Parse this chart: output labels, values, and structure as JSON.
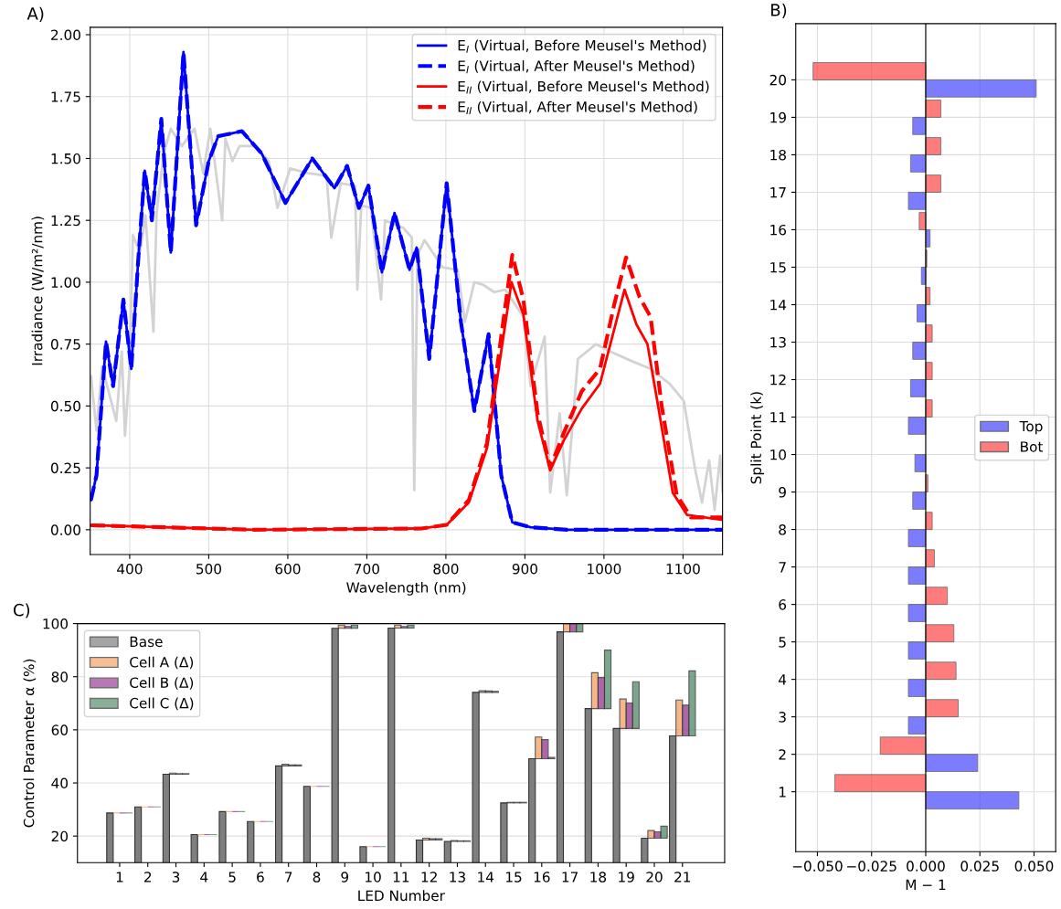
{
  "chart_data": [
    {
      "type": "line",
      "title": "A)",
      "xlabel": "Wavelength (nm)",
      "ylabel": "Irradiance (W/m²/nm)",
      "xlim": [
        350,
        1150
      ],
      "ylim": [
        -0.1,
        2.03
      ],
      "xticks": [
        400,
        500,
        600,
        700,
        800,
        900,
        1000,
        1100
      ],
      "yticks": [
        {
          "value": 0,
          "label": "0.00"
        },
        {
          "value": 0.25,
          "label": "0.25"
        },
        {
          "value": 0.5,
          "label": "0.50"
        },
        {
          "value": 0.75,
          "label": "0.75"
        },
        {
          "value": 1,
          "label": "1.00"
        },
        {
          "value": 1.25,
          "label": "1.25"
        },
        {
          "value": 1.5,
          "label": "1.50"
        },
        {
          "value": 1.75,
          "label": "1.75"
        },
        {
          "value": 2,
          "label": "2.00"
        }
      ],
      "grid": true,
      "legend": "top right",
      "series": [
        {
          "color": "#d3d3d3",
          "line_style": "solid",
          "x": [
            351,
            358,
            365,
            374,
            383,
            390,
            394,
            400,
            404,
            413,
            420,
            430,
            434,
            443,
            452,
            466,
            482,
            493,
            502,
            517,
            521,
            530,
            539,
            558,
            576,
            587,
            603,
            626,
            649,
            655,
            667,
            685,
            688,
            693,
            705,
            718,
            723,
            746,
            757,
            760,
            764,
            773,
            796,
            815,
            824,
            836,
            847,
            861,
            875,
            898,
            907,
            925,
            932,
            944,
            953,
            967,
            990,
            1008,
            1036,
            1059,
            1083,
            1101,
            1115,
            1124,
            1133,
            1140,
            1147,
            1150
          ],
          "values": [
            0.62,
            0.4,
            0.66,
            0.55,
            0.44,
            0.72,
            0.38,
            0.66,
            1.19,
            1.12,
            1.27,
            0.8,
            1.28,
            1.52,
            1.62,
            1.55,
            1.62,
            1.44,
            1.62,
            1.25,
            1.58,
            1.49,
            1.55,
            1.55,
            1.49,
            1.3,
            1.46,
            1.44,
            1.43,
            1.18,
            1.4,
            1.39,
            0.97,
            1.31,
            1.3,
            0.93,
            1.25,
            1.22,
            1.18,
            0.16,
            1.11,
            1.17,
            1.06,
            1.05,
            0.84,
            1.0,
            0.99,
            0.96,
            0.97,
            0.86,
            0.58,
            0.78,
            0.15,
            0.47,
            0.14,
            0.69,
            0.75,
            0.72,
            0.68,
            0.65,
            0.59,
            0.52,
            0.25,
            0.11,
            0.28,
            0.08,
            0.3,
            0.15
          ]
        },
        {
          "name": "E$_{I}$ (Virtual, Before Meusel's Method)",
          "color": "#0000ff",
          "line_style": "solid",
          "x": [
            351,
            358,
            370,
            379,
            392,
            402,
            411,
            419,
            428,
            440,
            452,
            468,
            484,
            500,
            512,
            542,
            567,
            597,
            631,
            659,
            675,
            690,
            702,
            719,
            735,
            754,
            763,
            779,
            801,
            819,
            836,
            854,
            870,
            884,
            907,
            953,
            1150
          ],
          "values": [
            0.12,
            0.22,
            0.76,
            0.58,
            0.93,
            0.65,
            1.1,
            1.45,
            1.25,
            1.66,
            1.12,
            1.93,
            1.23,
            1.49,
            1.59,
            1.61,
            1.52,
            1.32,
            1.5,
            1.38,
            1.47,
            1.3,
            1.39,
            1.04,
            1.28,
            1.05,
            1.14,
            0.69,
            1.4,
            0.84,
            0.48,
            0.79,
            0.22,
            0.03,
            0.01,
            0.0,
            0.0
          ]
        },
        {
          "name": "E$_{I}$ (Virtual, After Meusel's Method)",
          "color": "#0000ff",
          "line_style": "dashed",
          "x": [
            351,
            358,
            370,
            379,
            392,
            402,
            411,
            419,
            428,
            440,
            452,
            468,
            484,
            500,
            512,
            542,
            567,
            597,
            631,
            659,
            675,
            690,
            702,
            719,
            735,
            754,
            763,
            779,
            801,
            819,
            836,
            854,
            870,
            884,
            907,
            953,
            1150
          ],
          "values": [
            0.12,
            0.22,
            0.76,
            0.58,
            0.93,
            0.65,
            1.1,
            1.45,
            1.25,
            1.66,
            1.12,
            1.93,
            1.23,
            1.49,
            1.59,
            1.61,
            1.52,
            1.32,
            1.5,
            1.38,
            1.47,
            1.3,
            1.39,
            1.04,
            1.28,
            1.05,
            1.14,
            0.69,
            1.4,
            0.84,
            0.48,
            0.79,
            0.22,
            0.03,
            0.01,
            0.0,
            0.0
          ]
        },
        {
          "name": "E$_{II}$ (Virtual, Before Meusel's Method)",
          "color": "#ff0000",
          "line_style": "solid",
          "x": [
            351,
            558,
            769,
            801,
            829,
            852,
            870,
            883,
            898,
            916,
            932,
            949,
            972,
            995,
            1013,
            1026,
            1041,
            1055,
            1069,
            1087,
            1105,
            1150
          ],
          "values": [
            0.018,
            0.0,
            0.005,
            0.02,
            0.11,
            0.33,
            0.72,
            1.0,
            0.87,
            0.44,
            0.24,
            0.36,
            0.49,
            0.59,
            0.81,
            0.97,
            0.83,
            0.75,
            0.49,
            0.15,
            0.06,
            0.04
          ]
        },
        {
          "name": "E$_{II}$ (Virtual, After Meusel's Method)",
          "color": "#ff0000",
          "line_style": "dashed",
          "x": [
            351,
            558,
            769,
            801,
            829,
            852,
            870,
            884,
            898,
            916,
            932,
            949,
            972,
            995,
            1013,
            1028,
            1045,
            1059,
            1073,
            1092,
            1110,
            1150
          ],
          "values": [
            0.018,
            0.0,
            0.005,
            0.02,
            0.12,
            0.35,
            0.78,
            1.11,
            0.93,
            0.47,
            0.25,
            0.39,
            0.56,
            0.65,
            0.91,
            1.1,
            0.94,
            0.86,
            0.5,
            0.14,
            0.05,
            0.05
          ]
        }
      ]
    },
    {
      "type": "bar",
      "orientation": "horizontal",
      "title": "B)",
      "xlabel": "M − 1",
      "ylabel": "Split Point (k)",
      "categories": [
        "20",
        "19",
        "18",
        "17",
        "16",
        "15",
        "14",
        "13",
        "12",
        "11",
        "10",
        "9",
        "8",
        "7",
        "6",
        "5",
        "4",
        "3",
        "2",
        "1"
      ],
      "xlim": [
        -0.06,
        0.06
      ],
      "xticks": [
        {
          "value": -0.05,
          "label": "−0.050"
        },
        {
          "value": -0.025,
          "label": "−0.025"
        },
        {
          "value": 0,
          "label": "0.000"
        },
        {
          "value": 0.025,
          "label": "0.025"
        },
        {
          "value": 0.05,
          "label": "0.050"
        }
      ],
      "grid": true,
      "legend": "right",
      "ref_lines": [
        {
          "axis": "x",
          "value": 0,
          "color": "#000000"
        }
      ],
      "series": [
        {
          "name": "Top",
          "color": "#4545ff",
          "values": [
            0.051,
            -0.006,
            -0.007,
            -0.008,
            0.002,
            -0.002,
            -0.004,
            -0.006,
            -0.007,
            -0.008,
            -0.005,
            -0.006,
            -0.008,
            -0.008,
            -0.008,
            -0.008,
            -0.008,
            -0.008,
            0.024,
            0.043
          ]
        },
        {
          "name": "Bot",
          "color": "#ff4545",
          "values": [
            -0.052,
            0.007,
            0.007,
            0.007,
            -0.003,
            0.0005,
            0.002,
            0.003,
            0.003,
            0.003,
            null,
            0.001,
            0.003,
            0.004,
            0.01,
            0.013,
            0.014,
            0.015,
            -0.021,
            -0.042
          ]
        }
      ]
    },
    {
      "type": "bar",
      "title": "C)",
      "xlabel": "LED Number",
      "ylabel": "Control Parameter α (%)",
      "categories": [
        "1",
        "2",
        "3",
        "4",
        "5",
        "6",
        "7",
        "8",
        "9",
        "10",
        "11",
        "12",
        "13",
        "14",
        "15",
        "16",
        "17",
        "18",
        "19",
        "20",
        "21"
      ],
      "ylim": [
        10,
        100
      ],
      "yticks": [
        20,
        40,
        60,
        80,
        100
      ],
      "grid": "y",
      "legend": "top left",
      "series": [
        {
          "name": "Base",
          "color": "#7f7f7f",
          "values": [
            28.7,
            31.0,
            43.3,
            20.6,
            29.2,
            25.5,
            46.4,
            38.7,
            98.2,
            16.0,
            98.3,
            18.5,
            18.0,
            74.1,
            32.5,
            49.1,
            96.9,
            68.0,
            60.5,
            19.2,
            57.7
          ]
        },
        {
          "name": "Cell A (Δ)",
          "color": "#f4a46a",
          "base": [
            28.7,
            31.0,
            43.3,
            20.6,
            29.2,
            25.5,
            46.4,
            38.7,
            98.2,
            16.0,
            98.3,
            18.5,
            18.0,
            74.1,
            32.5,
            49.1,
            96.9,
            68.0,
            60.5,
            19.2,
            57.7
          ],
          "values": [
            0,
            0,
            0.4,
            0,
            0,
            0,
            0.6,
            0,
            1.2,
            0,
            1.1,
            0.7,
            0.3,
            0.6,
            0.2,
            8.2,
            3.1,
            13.5,
            11.1,
            2.9,
            13.5
          ]
        },
        {
          "name": "Cell B (Δ)",
          "color": "#9b3f96",
          "base": [
            28.7,
            31.0,
            43.3,
            20.6,
            29.2,
            25.5,
            46.4,
            38.7,
            98.2,
            16.0,
            98.3,
            18.5,
            18.0,
            74.1,
            32.5,
            49.1,
            96.9,
            68.0,
            60.5,
            19.2,
            57.7
          ],
          "values": [
            0,
            0,
            0.2,
            0,
            0,
            0,
            0.4,
            0,
            0.7,
            0,
            0.6,
            0.5,
            0.2,
            0.5,
            0.2,
            7.2,
            3.1,
            11.7,
            9.6,
            2.4,
            11.6
          ]
        },
        {
          "name": "Cell C (Δ)",
          "color": "#5a8f70",
          "base": [
            28.7,
            31.0,
            43.3,
            20.6,
            29.2,
            25.5,
            46.4,
            38.7,
            98.2,
            16.0,
            98.3,
            18.5,
            18.0,
            74.1,
            32.5,
            49.1,
            96.9,
            68.0,
            60.5,
            19.2,
            57.7
          ],
          "values": [
            0,
            0,
            0.2,
            0,
            0,
            0,
            0.4,
            0,
            1.2,
            0,
            1.1,
            0.5,
            0.2,
            0.4,
            0.2,
            0.5,
            3.1,
            22.0,
            17.6,
            4.5,
            24.5
          ]
        }
      ]
    }
  ]
}
